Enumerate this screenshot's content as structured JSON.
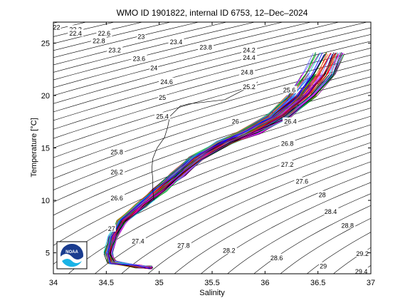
{
  "chart_data": {
    "type": "line",
    "title": "WMO ID 1901822, internal ID 6753, 12–Dec–2024",
    "xlabel": "Salinity",
    "ylabel": "Temperature [°C]",
    "xlim": [
      34,
      37
    ],
    "ylim": [
      3,
      27
    ],
    "xticks": [
      34,
      34.5,
      35,
      35.5,
      36,
      36.5,
      37
    ],
    "xtick_labels": [
      "34",
      "34.5",
      "35",
      "35.5",
      "36",
      "36.5",
      "37"
    ],
    "yticks": [
      5,
      10,
      15,
      20,
      25
    ],
    "ytick_labels": [
      "5",
      "10",
      "15",
      "20",
      "25"
    ],
    "grid": false,
    "logo_text": "NOAA",
    "density_contours": {
      "levels": [
        22,
        22.2,
        22.4,
        22.6,
        22.8,
        23,
        23.2,
        23.4,
        23.6,
        23.8,
        24,
        24.2,
        24.4,
        24.6,
        24.8,
        25,
        25.2,
        25.4,
        25.6,
        25.8,
        26,
        26.2,
        26.4,
        26.6,
        26.8,
        27,
        27.2,
        27.4,
        27.6,
        27.8,
        28,
        28.2,
        28.4,
        28.6,
        28.8,
        29,
        29.2,
        29.4,
        29.6,
        29.8,
        30
      ],
      "labels": [
        {
          "text": "22",
          "s": 34.03,
          "t": 26.5
        },
        {
          "text": "22.2",
          "s": 34.21,
          "t": 26.3
        },
        {
          "text": "22.4",
          "s": 34.21,
          "t": 25.9
        },
        {
          "text": "22.6",
          "s": 34.48,
          "t": 25.9
        },
        {
          "text": "22.8",
          "s": 34.43,
          "t": 25.2
        },
        {
          "text": "23",
          "s": 34.83,
          "t": 25.6
        },
        {
          "text": "23.2",
          "s": 34.58,
          "t": 24.3
        },
        {
          "text": "23.4",
          "s": 35.16,
          "t": 25.1
        },
        {
          "text": "23.6",
          "s": 34.81,
          "t": 23.5
        },
        {
          "text": "23.8",
          "s": 35.44,
          "t": 24.6
        },
        {
          "text": "24",
          "s": 34.95,
          "t": 22.6
        },
        {
          "text": "24.2",
          "s": 35.85,
          "t": 24.3
        },
        {
          "text": "24.4",
          "s": 35.85,
          "t": 23.6
        },
        {
          "text": "24.6",
          "s": 35.07,
          "t": 21.3
        },
        {
          "text": "24.8",
          "s": 35.83,
          "t": 22.2
        },
        {
          "text": "25",
          "s": 35.03,
          "t": 19.8
        },
        {
          "text": "25.2",
          "s": 35.85,
          "t": 20.8
        },
        {
          "text": "25.4",
          "s": 35.03,
          "t": 18.0
        },
        {
          "text": "25.6",
          "s": 36.23,
          "t": 20.5
        },
        {
          "text": "25.8",
          "s": 34.6,
          "t": 14.6
        },
        {
          "text": "26",
          "s": 35.72,
          "t": 17.5
        },
        {
          "text": "26.2",
          "s": 34.6,
          "t": 12.7
        },
        {
          "text": "26.4",
          "s": 36.24,
          "t": 17.5
        },
        {
          "text": "26.6",
          "s": 34.6,
          "t": 10.2
        },
        {
          "text": "26.8",
          "s": 36.21,
          "t": 15.4
        },
        {
          "text": "27",
          "s": 34.55,
          "t": 7.3
        },
        {
          "text": "27.2",
          "s": 36.21,
          "t": 13.4
        },
        {
          "text": "27.4",
          "s": 34.8,
          "t": 6.1
        },
        {
          "text": "27.6",
          "s": 36.35,
          "t": 11.8
        },
        {
          "text": "27.8",
          "s": 35.23,
          "t": 5.7
        },
        {
          "text": "28",
          "s": 36.54,
          "t": 10.5
        },
        {
          "text": "28.2",
          "s": 35.66,
          "t": 5.2
        },
        {
          "text": "28.4",
          "s": 36.62,
          "t": 8.9
        },
        {
          "text": "28.6",
          "s": 36.11,
          "t": 4.5
        },
        {
          "text": "28.8",
          "s": 36.78,
          "t": 7.6
        },
        {
          "text": "29",
          "s": 36.55,
          "t": 3.7
        },
        {
          "text": "29.2",
          "s": 36.92,
          "t": 4.9
        },
        {
          "text": "29.4",
          "s": 36.91,
          "t": 3.2
        }
      ]
    },
    "series": [
      {
        "color": "#000000",
        "s": [
          34.95,
          34.94,
          34.94,
          34.93,
          34.94,
          34.98,
          35.05,
          35.08,
          35.1,
          35.2,
          35.28,
          35.45,
          35.62,
          35.85,
          35.9,
          35.93
        ],
        "t": [
          10.0,
          11.0,
          12.0,
          13.0,
          14.0,
          15.0,
          16.0,
          17.0,
          18.0,
          19.0,
          19.2,
          19.4,
          19.6,
          20.8,
          21.0,
          21.3
        ]
      }
    ],
    "profile_envelope": {
      "colors": [
        "#0000ff",
        "#ff0000",
        "#00aa00",
        "#ff00ff",
        "#00cccc",
        "#000000",
        "#7f007f",
        "#cc6600",
        "#6666ff"
      ],
      "profile_count": 100,
      "center_s": [
        34.92,
        34.8,
        34.55,
        34.52,
        34.56,
        34.65,
        34.82,
        35.0,
        35.18,
        35.35,
        35.62,
        35.85,
        36.12,
        36.35,
        36.5,
        36.6,
        36.66
      ],
      "center_t": [
        3.6,
        3.7,
        4.1,
        5.0,
        6.5,
        8.0,
        9.5,
        11.0,
        12.5,
        14.0,
        15.5,
        16.5,
        18.0,
        20.0,
        22.0,
        24.0,
        25.6
      ],
      "halfwidth_s": [
        0.01,
        0.02,
        0.03,
        0.03,
        0.03,
        0.04,
        0.05,
        0.06,
        0.06,
        0.06,
        0.07,
        0.1,
        0.12,
        0.14,
        0.16,
        0.15,
        0.1
      ]
    }
  }
}
